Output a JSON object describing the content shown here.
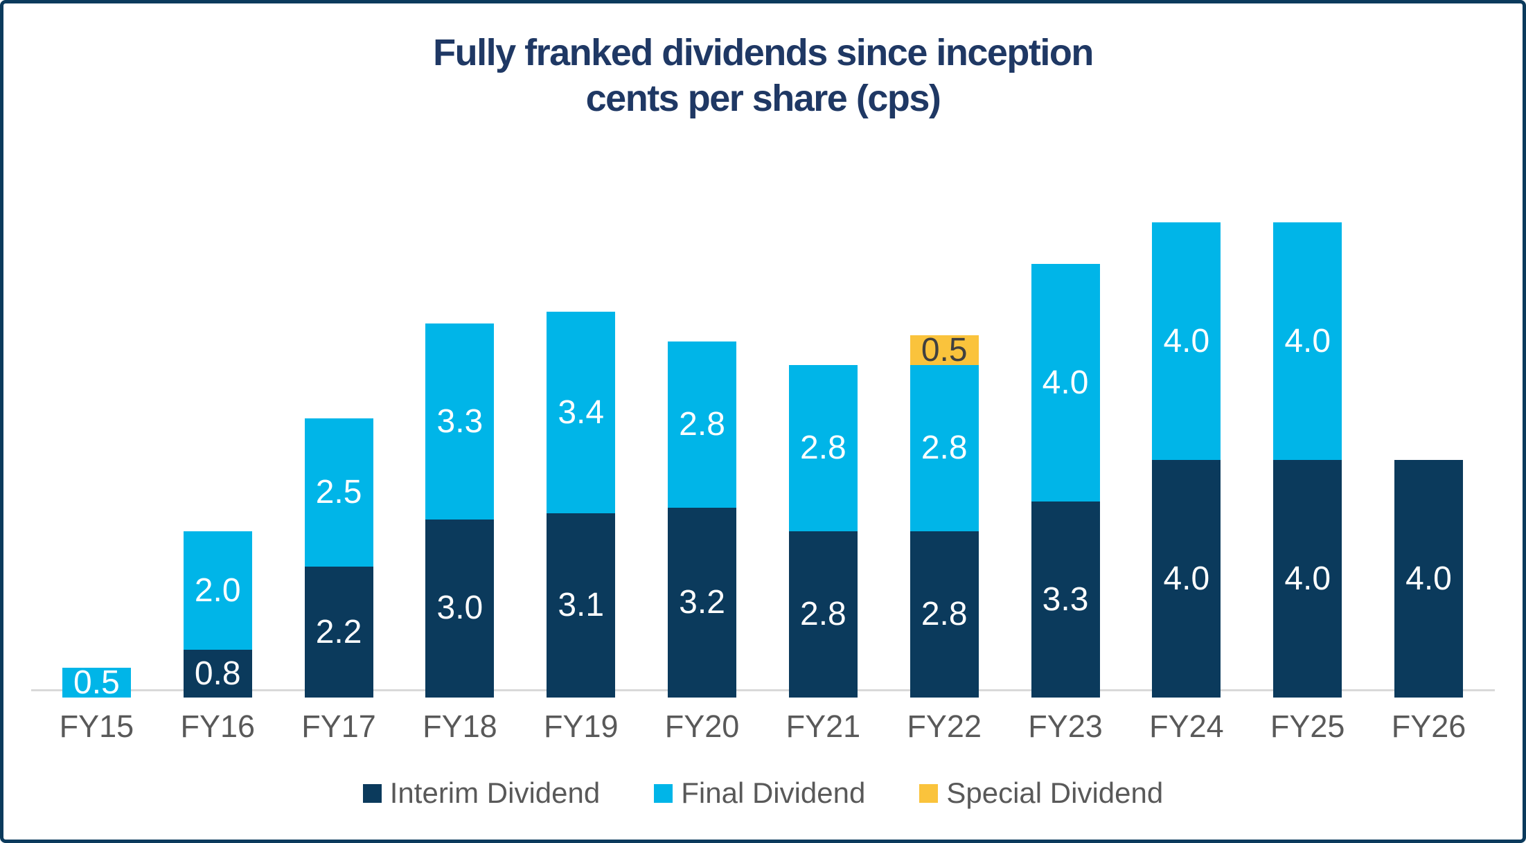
{
  "title": {
    "line1": "Fully franked dividends since inception",
    "line2": "cents per share (cps)"
  },
  "chart_data": {
    "type": "bar",
    "stacked": true,
    "title": "Fully franked dividends since inception cents per share (cps)",
    "xlabel": "",
    "ylabel": "cents per share (cps)",
    "ylim": [
      0,
      8.5
    ],
    "grid": false,
    "legend_position": "bottom",
    "value_label_decimals": 1,
    "categories": [
      "FY15",
      "FY16",
      "FY17",
      "FY18",
      "FY19",
      "FY20",
      "FY21",
      "FY22",
      "FY23",
      "FY24",
      "FY25",
      "FY26"
    ],
    "series": [
      {
        "name": "Interim Dividend",
        "color": "#0b3a5c",
        "label_color": "#ffffff",
        "values": [
          0,
          0.8,
          2.2,
          3.0,
          3.1,
          3.2,
          2.8,
          2.8,
          3.3,
          4.0,
          4.0,
          4.0
        ]
      },
      {
        "name": "Final Dividend",
        "color": "#00b5e8",
        "label_color": "#ffffff",
        "values": [
          0.5,
          2.0,
          2.5,
          3.3,
          3.4,
          2.8,
          2.8,
          2.8,
          4.0,
          4.0,
          4.0,
          0
        ]
      },
      {
        "name": "Special Dividend",
        "color": "#fac33c",
        "label_color": "#404040",
        "values": [
          0,
          0,
          0,
          0,
          0,
          0,
          0,
          0.5,
          0,
          0,
          0,
          0
        ]
      }
    ]
  },
  "legend": {
    "items": [
      {
        "label": "Interim Dividend",
        "color": "#0b3a5c"
      },
      {
        "label": "Final Dividend",
        "color": "#00b5e8"
      },
      {
        "label": "Special Dividend",
        "color": "#fac33c"
      }
    ]
  },
  "colors": {
    "title": "#1f3864",
    "axis_line": "#d9d9d9",
    "axis_labels": "#595959",
    "frame_border": "#0b3a5c"
  }
}
